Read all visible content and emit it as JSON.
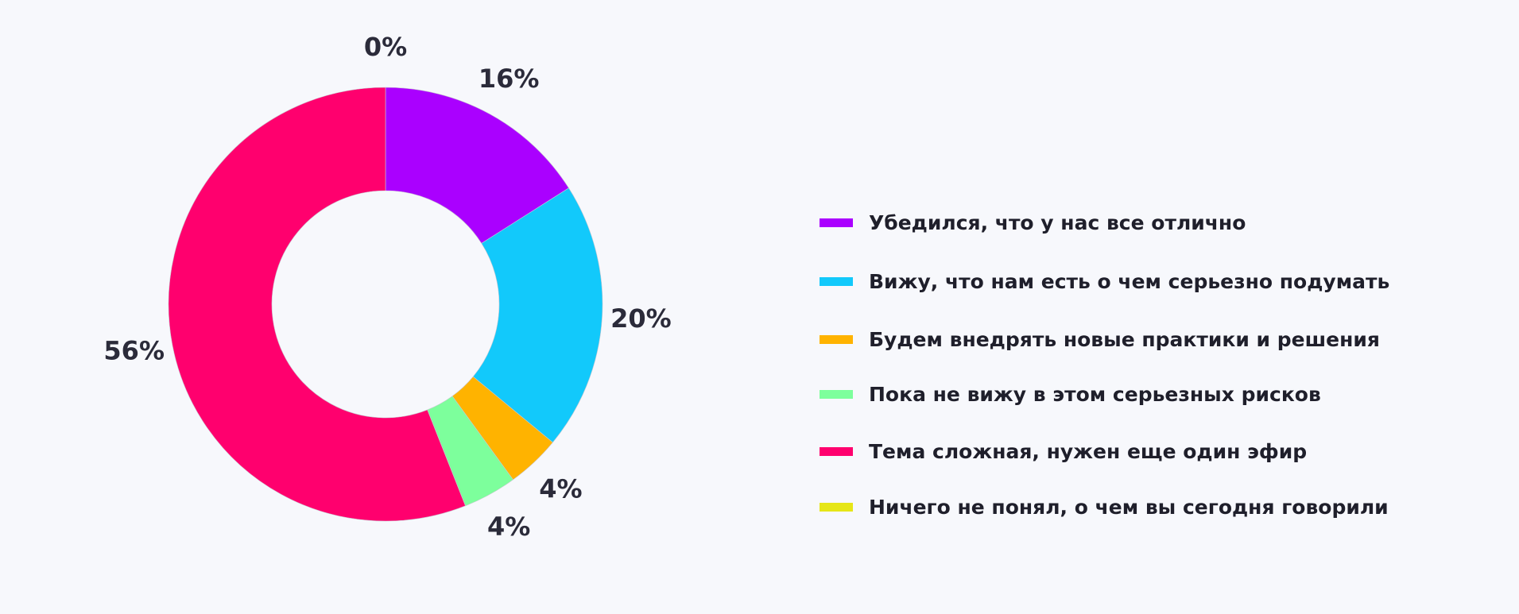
{
  "chart_data": {
    "type": "pie",
    "variant": "donut",
    "title": "",
    "slices": [
      {
        "label": "Убедился, что у нас все отлично",
        "value": 16,
        "display": "16%",
        "color": "#aa00ff"
      },
      {
        "label": "Вижу, что нам есть о чем серьезно подумать",
        "value": 20,
        "display": "20%",
        "color": "#12c9fb"
      },
      {
        "label": "Будем внедрять новые практики и решения",
        "value": 4,
        "display": "4%",
        "color": "#ffb300"
      },
      {
        "label": "Пока не вижу в этом серьезных рисков",
        "value": 4,
        "display": "4%",
        "color": "#7dff9c"
      },
      {
        "label": "Тема сложная, нужен еще один эфир",
        "value": 56,
        "display": "56%",
        "color": "#ff006e"
      },
      {
        "label": "Ничего не понял, о чем вы сегодня говорили",
        "value": 0,
        "display": "0%",
        "color": "#e6e617"
      }
    ],
    "legend_position": "right",
    "start_angle": "12 o'clock, clockwise"
  }
}
